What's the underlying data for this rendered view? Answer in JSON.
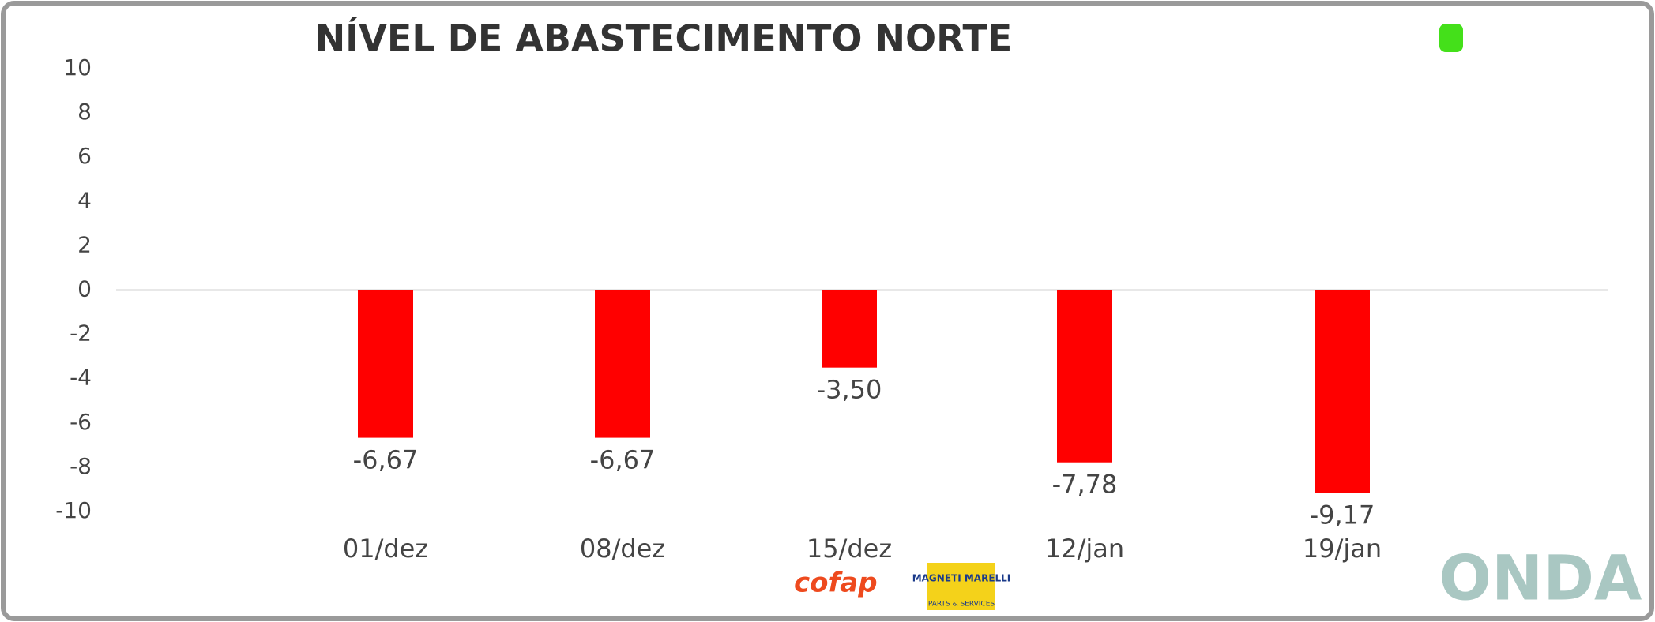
{
  "chart_data": {
    "type": "bar",
    "title": "NÍVEL DE ABASTECIMENTO NORTE",
    "categories": [
      "01/dez",
      "08/dez",
      "15/dez",
      "12/jan",
      "19/jan"
    ],
    "values": [
      -6.67,
      -6.67,
      -3.5,
      -7.78,
      -9.17
    ],
    "value_labels": [
      "-6,67",
      "-6,67",
      "-3,50",
      "-7,78",
      "-9,17"
    ],
    "color": "#ff0000",
    "ylim": [
      -10,
      10
    ],
    "yticks": [
      -10,
      -8,
      -6,
      -4,
      -2,
      0,
      2,
      4,
      6,
      8,
      10
    ],
    "zero_line": true
  },
  "sponsors": {
    "cofap": "cofap",
    "magneti": "MAGNETI MARELLI",
    "magneti_sub": "PARTS & SERVICES"
  },
  "brand": "ONDA"
}
